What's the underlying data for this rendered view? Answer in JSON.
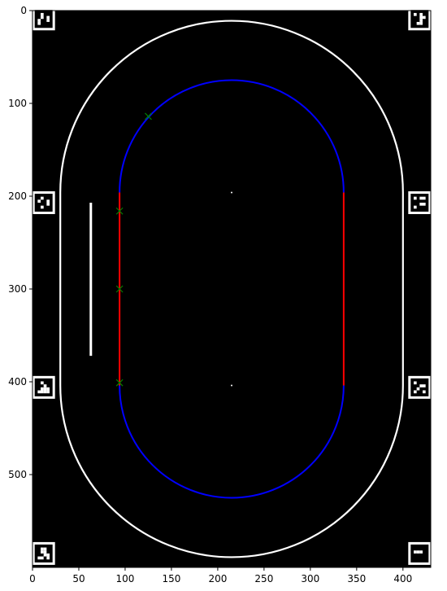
{
  "chart_data": {
    "type": "scatter",
    "title": "",
    "xlabel": "",
    "ylabel": "",
    "xlim": [
      0,
      430
    ],
    "ylim": [
      0,
      600
    ],
    "y_inverted": true,
    "grid": false,
    "background": "#000000",
    "xticks": [
      0,
      50,
      100,
      150,
      200,
      250,
      300,
      350,
      400
    ],
    "yticks": [
      0,
      100,
      200,
      300,
      400,
      500
    ],
    "outer_track": {
      "color": "#ffffff",
      "center_x": 215,
      "top_center_y": 196,
      "bottom_center_y": 404,
      "radius": 185
    },
    "inner_track": {
      "center_x": 215,
      "top_center_y": 196,
      "bottom_center_y": 404,
      "radius": 121,
      "curve_color": "#0000ff",
      "straight_color": "#ff0000"
    },
    "white_bar": {
      "color": "#ffffff",
      "x": 63,
      "y_start": 207,
      "y_end": 372
    },
    "center_dots": [
      {
        "x": 215,
        "y": 196
      },
      {
        "x": 215,
        "y": 404
      }
    ],
    "points": {
      "marker": "x",
      "color": "#008000",
      "values": [
        {
          "x": 125,
          "y": 114
        },
        {
          "x": 94,
          "y": 216
        },
        {
          "x": 94,
          "y": 300
        },
        {
          "x": 94,
          "y": 401
        }
      ]
    },
    "markers": {
      "type": "aruco",
      "positions": [
        {
          "x": 12,
          "y": 9
        },
        {
          "x": 418,
          "y": 9
        },
        {
          "x": 12,
          "y": 207
        },
        {
          "x": 418,
          "y": 207
        },
        {
          "x": 12,
          "y": 406
        },
        {
          "x": 418,
          "y": 406
        },
        {
          "x": 12,
          "y": 585
        },
        {
          "x": 418,
          "y": 585
        }
      ]
    }
  }
}
